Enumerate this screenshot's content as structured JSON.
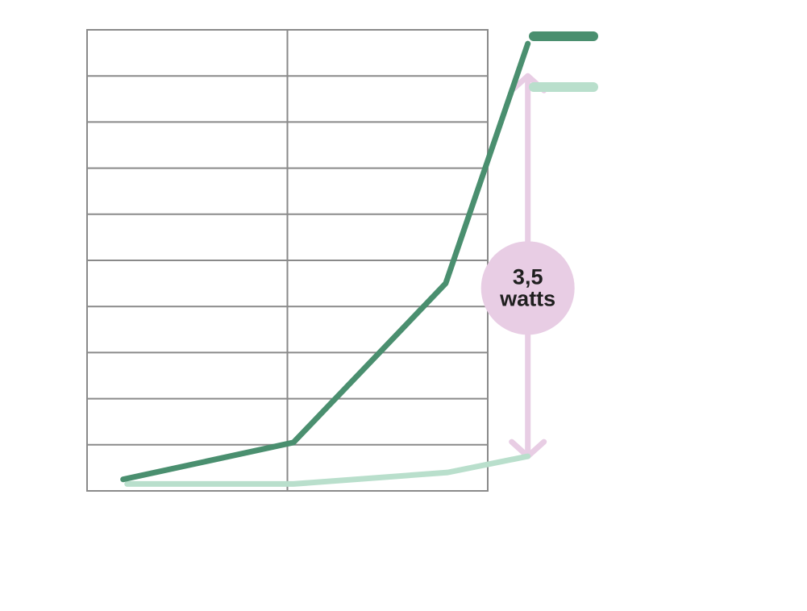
{
  "chart_data": {
    "type": "line",
    "grid": true,
    "legend_position": "top-right",
    "x_columns": 2,
    "y_rows": 10,
    "series": [
      {
        "color": "#4a8f6f",
        "points": [
          [
            0.18,
            0.25
          ],
          [
            1.03,
            1.05
          ],
          [
            1.79,
            4.5
          ],
          [
            2.2,
            9.7
          ]
        ]
      },
      {
        "color": "#b9dfcc",
        "points": [
          [
            0.2,
            0.15
          ],
          [
            1.03,
            0.15
          ],
          [
            1.8,
            0.4
          ],
          [
            2.2,
            0.75
          ]
        ]
      }
    ],
    "annotation": {
      "line1": "3,5",
      "line2": "watts",
      "color": "#e8cde4",
      "x": 2.2,
      "y_from": 9.0,
      "y_to": 0.75,
      "y_label": 4.4
    }
  }
}
